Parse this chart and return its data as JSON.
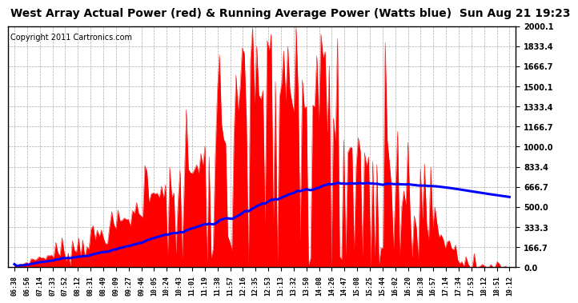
{
  "title": "West Array Actual Power (red) & Running Average Power (Watts blue)  Sun Aug 21 19:23",
  "copyright": "Copyright 2011 Cartronics.com",
  "ylabel_right_ticks": [
    0.0,
    166.7,
    333.3,
    500.0,
    666.7,
    833.4,
    1000.0,
    1166.7,
    1333.4,
    1500.1,
    1666.7,
    1833.4,
    2000.1
  ],
  "ylim": [
    0,
    2000.1
  ],
  "bg_color": "#ffffff",
  "grid_color": "#aaaaaa",
  "actual_color": "red",
  "avg_color": "blue",
  "title_fontsize": 10,
  "copyright_fontsize": 7,
  "time_labels": [
    "06:38",
    "06:56",
    "07:14",
    "07:33",
    "07:52",
    "08:12",
    "08:31",
    "08:49",
    "09:09",
    "09:27",
    "09:46",
    "10:05",
    "10:24",
    "10:43",
    "11:01",
    "11:19",
    "11:38",
    "11:57",
    "12:16",
    "12:35",
    "12:53",
    "13:13",
    "13:32",
    "13:50",
    "14:08",
    "14:26",
    "14:47",
    "15:08",
    "15:25",
    "15:44",
    "16:02",
    "16:20",
    "16:38",
    "16:57",
    "17:14",
    "17:34",
    "17:53",
    "18:12",
    "18:51",
    "19:12"
  ]
}
